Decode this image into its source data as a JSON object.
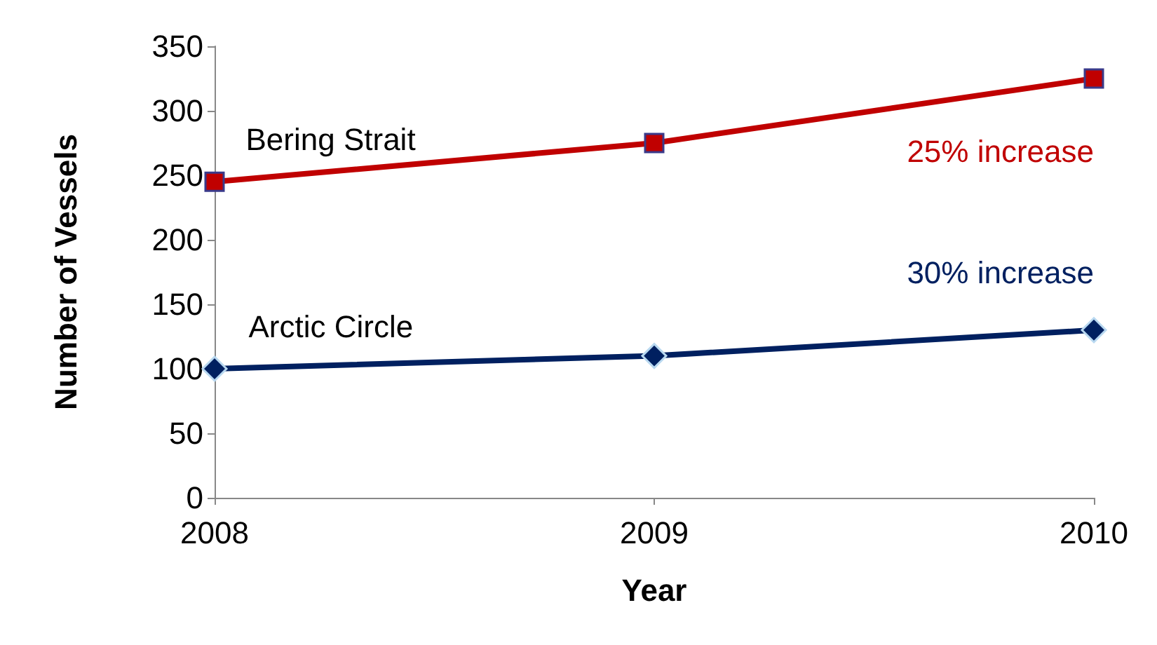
{
  "chart_data": {
    "type": "line",
    "xlabel": "Year",
    "ylabel": "Number of Vessels",
    "categories": [
      "2008",
      "2009",
      "2010"
    ],
    "series": [
      {
        "name": "Bering Strait",
        "color": "#c00000",
        "values": [
          245,
          275,
          325
        ],
        "marker": "square"
      },
      {
        "name": "Arctic Circle",
        "color": "#002060",
        "values": [
          100,
          110,
          130
        ],
        "marker": "diamond"
      }
    ],
    "ylim": [
      0,
      350
    ],
    "yticks": [
      0,
      50,
      100,
      150,
      200,
      250,
      300,
      350
    ],
    "grid": false,
    "legend": false,
    "annotations": [
      "25% increase",
      "30% increase"
    ]
  }
}
